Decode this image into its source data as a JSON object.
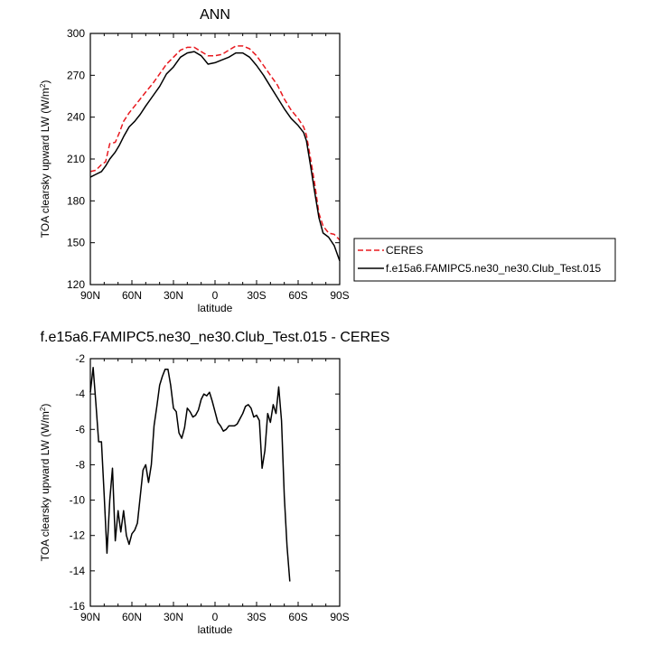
{
  "chart_data": [
    {
      "type": "line",
      "title": "ANN",
      "xlabel": "latitude",
      "ylabel": "TOA clearsky upward LW (W/m²)",
      "ylabel_main": "TOA clearsky upward LW (W/m",
      "ylabel_sup": "2",
      "ylabel_tail": ")",
      "xlim": [
        90,
        -90
      ],
      "ylim": [
        120,
        300
      ],
      "xticks": [
        {
          "value": 90,
          "label": "90N"
        },
        {
          "value": 60,
          "label": "60N"
        },
        {
          "value": 30,
          "label": "30N"
        },
        {
          "value": 0,
          "label": "0"
        },
        {
          "value": -30,
          "label": "30S"
        },
        {
          "value": -60,
          "label": "60S"
        },
        {
          "value": -90,
          "label": "90S"
        }
      ],
      "yticks": [
        {
          "value": 300,
          "label": "300"
        },
        {
          "value": 270,
          "label": "270"
        },
        {
          "value": 240,
          "label": "240"
        },
        {
          "value": 210,
          "label": "210"
        },
        {
          "value": 180,
          "label": "180"
        },
        {
          "value": 150,
          "label": "150"
        },
        {
          "value": 120,
          "label": "120"
        }
      ],
      "legend": {
        "placement": "right, outside the plot"
      },
      "series": [
        {
          "name": "CERES",
          "color": "#e8191f",
          "dash": true,
          "points": [
            [
              90,
              201
            ],
            [
              86,
              202
            ],
            [
              82,
              206
            ],
            [
              79,
              208
            ],
            [
              76,
              221
            ],
            [
              72,
              222
            ],
            [
              69,
              229
            ],
            [
              66,
              237
            ],
            [
              62,
              243
            ],
            [
              58,
              248
            ],
            [
              54,
              253
            ],
            [
              50,
              258
            ],
            [
              45,
              264
            ],
            [
              40,
              271
            ],
            [
              35,
              278
            ],
            [
              30,
              283
            ],
            [
              25,
              288
            ],
            [
              20,
              290
            ],
            [
              15,
              290
            ],
            [
              10,
              287
            ],
            [
              5,
              284
            ],
            [
              0,
              284
            ],
            [
              -5,
              285
            ],
            [
              -10,
              288
            ],
            [
              -15,
              291
            ],
            [
              -20,
              291
            ],
            [
              -25,
              289
            ],
            [
              -30,
              284
            ],
            [
              -35,
              277
            ],
            [
              -40,
              270
            ],
            [
              -45,
              263
            ],
            [
              -50,
              253
            ],
            [
              -55,
              245
            ],
            [
              -60,
              239
            ],
            [
              -64,
              233
            ],
            [
              -66,
              227
            ],
            [
              -69,
              210
            ],
            [
              -72,
              192
            ],
            [
              -75,
              171
            ],
            [
              -78,
              162
            ],
            [
              -82,
              157
            ],
            [
              -86,
              156
            ],
            [
              -90,
              152
            ]
          ]
        },
        {
          "name": "f.e15a6.FAMIPC5.ne30_ne30.Club_Test.015",
          "color": "#000000",
          "dash": false,
          "points": [
            [
              90,
              197
            ],
            [
              86,
              199
            ],
            [
              82,
              201
            ],
            [
              79,
              205
            ],
            [
              76,
              210
            ],
            [
              72,
              215
            ],
            [
              69,
              220
            ],
            [
              66,
              226
            ],
            [
              62,
              233
            ],
            [
              58,
              237
            ],
            [
              54,
              242
            ],
            [
              50,
              248
            ],
            [
              45,
              255
            ],
            [
              40,
              262
            ],
            [
              35,
              271
            ],
            [
              30,
              276
            ],
            [
              25,
              283
            ],
            [
              20,
              286
            ],
            [
              15,
              287
            ],
            [
              10,
              284
            ],
            [
              5,
              278
            ],
            [
              0,
              279
            ],
            [
              -5,
              281
            ],
            [
              -10,
              283
            ],
            [
              -15,
              286
            ],
            [
              -20,
              286
            ],
            [
              -25,
              283
            ],
            [
              -30,
              277
            ],
            [
              -35,
              270
            ],
            [
              -40,
              262
            ],
            [
              -45,
              254
            ],
            [
              -50,
              246
            ],
            [
              -55,
              239
            ],
            [
              -60,
              234
            ],
            [
              -64,
              229
            ],
            [
              -66,
              223
            ],
            [
              -69,
              205
            ],
            [
              -72,
              186
            ],
            [
              -75,
              168
            ],
            [
              -78,
              157
            ],
            [
              -82,
              154
            ],
            [
              -86,
              148
            ],
            [
              -90,
              137
            ]
          ]
        }
      ]
    },
    {
      "type": "line",
      "title": "f.e15a6.FAMIPC5.ne30_ne30.Club_Test.015 - CERES",
      "xlabel": "latitude",
      "ylabel": "TOA clearsky upward LW (W/m²)",
      "ylabel_main": "TOA clearsky upward LW (W/m",
      "ylabel_sup": "2",
      "ylabel_tail": ")",
      "xlim": [
        90,
        -90
      ],
      "ylim": [
        -16,
        -2
      ],
      "xticks": [
        {
          "value": 90,
          "label": "90N"
        },
        {
          "value": 60,
          "label": "60N"
        },
        {
          "value": 30,
          "label": "30N"
        },
        {
          "value": 0,
          "label": "0"
        },
        {
          "value": -30,
          "label": "30S"
        },
        {
          "value": -60,
          "label": "60S"
        },
        {
          "value": -90,
          "label": "90S"
        }
      ],
      "yticks": [
        {
          "value": -2,
          "label": "-2"
        },
        {
          "value": -4,
          "label": "-4"
        },
        {
          "value": -6,
          "label": "-6"
        },
        {
          "value": -8,
          "label": "-8"
        },
        {
          "value": -10,
          "label": "-10"
        },
        {
          "value": -12,
          "label": "-12"
        },
        {
          "value": -14,
          "label": "-14"
        },
        {
          "value": -16,
          "label": "-16"
        }
      ],
      "series": [
        {
          "color": "#000000",
          "dash": false,
          "points": [
            [
              90,
              -3.9
            ],
            [
              88,
              -2.5
            ],
            [
              86,
              -4.5
            ],
            [
              84,
              -6.7
            ],
            [
              82,
              -6.7
            ],
            [
              80,
              -9.7
            ],
            [
              78,
              -13.0
            ],
            [
              76,
              -10.0
            ],
            [
              74,
              -8.2
            ],
            [
              72,
              -12.3
            ],
            [
              70,
              -10.6
            ],
            [
              68,
              -11.8
            ],
            [
              66,
              -10.6
            ],
            [
              64,
              -12.0
            ],
            [
              62,
              -12.5
            ],
            [
              60,
              -11.9
            ],
            [
              58,
              -11.7
            ],
            [
              56,
              -11.3
            ],
            [
              54,
              -9.8
            ],
            [
              52,
              -8.3
            ],
            [
              50,
              -8.0
            ],
            [
              48,
              -9.0
            ],
            [
              46,
              -8.0
            ],
            [
              44,
              -5.8
            ],
            [
              42,
              -4.7
            ],
            [
              40,
              -3.5
            ],
            [
              38,
              -3.0
            ],
            [
              36,
              -2.6
            ],
            [
              34,
              -2.6
            ],
            [
              32,
              -3.5
            ],
            [
              30,
              -4.8
            ],
            [
              28,
              -5.0
            ],
            [
              26,
              -6.2
            ],
            [
              24,
              -6.5
            ],
            [
              22,
              -5.9
            ],
            [
              20,
              -4.8
            ],
            [
              18,
              -5.0
            ],
            [
              16,
              -5.3
            ],
            [
              14,
              -5.2
            ],
            [
              12,
              -4.9
            ],
            [
              10,
              -4.3
            ],
            [
              8,
              -4.0
            ],
            [
              6,
              -4.1
            ],
            [
              4,
              -3.9
            ],
            [
              2,
              -4.4
            ],
            [
              0,
              -5.0
            ],
            [
              -2,
              -5.6
            ],
            [
              -4,
              -5.8
            ],
            [
              -6,
              -6.1
            ],
            [
              -8,
              -6.0
            ],
            [
              -10,
              -5.8
            ],
            [
              -12,
              -5.8
            ],
            [
              -14,
              -5.8
            ],
            [
              -16,
              -5.7
            ],
            [
              -18,
              -5.4
            ],
            [
              -20,
              -5.1
            ],
            [
              -22,
              -4.7
            ],
            [
              -24,
              -4.6
            ],
            [
              -26,
              -4.8
            ],
            [
              -28,
              -5.3
            ],
            [
              -30,
              -5.2
            ],
            [
              -32,
              -5.5
            ],
            [
              -34,
              -8.2
            ],
            [
              -36,
              -7.2
            ],
            [
              -38,
              -5.1
            ],
            [
              -40,
              -5.6
            ],
            [
              -42,
              -4.6
            ],
            [
              -44,
              -5.1
            ],
            [
              -46,
              -3.6
            ],
            [
              -48,
              -5.5
            ],
            [
              -50,
              -9.8
            ],
            [
              -52,
              -12.6
            ],
            [
              -54,
              -14.6
            ]
          ]
        }
      ]
    }
  ]
}
